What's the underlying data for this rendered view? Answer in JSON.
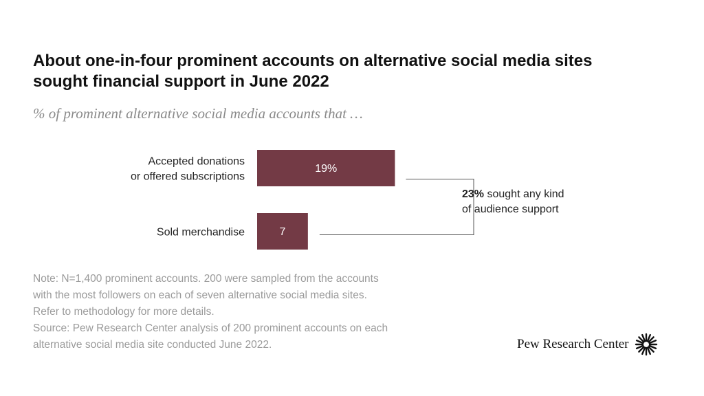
{
  "title_line1": "About one-in-four prominent accounts on alternative social media sites",
  "title_line2": "sought financial support in June 2022",
  "subtitle": "% of prominent alternative social media accounts that …",
  "chart_data": {
    "type": "bar",
    "orientation": "horizontal",
    "categories": [
      [
        "Accepted donations",
        "or offered subscriptions"
      ],
      [
        "Sold merchandise"
      ]
    ],
    "values": [
      19,
      7
    ],
    "value_labels": [
      "19%",
      "7"
    ],
    "bar_color": "#733a45",
    "annotation": {
      "bold": "23%",
      "line1_rest": " sought any kind",
      "line2": "of audience support",
      "value": 23
    }
  },
  "notes": [
    "Note: N=1,400 prominent accounts. 200 were sampled from the accounts",
    "with the most followers on each of seven alternative social media sites.",
    "Refer to methodology for more details.",
    "Source: Pew Research Center analysis of 200 prominent accounts on each",
    "alternative social media site conducted June 2022."
  ],
  "brand": "Pew Research Center",
  "brand_icon": "sunburst-logo-icon"
}
